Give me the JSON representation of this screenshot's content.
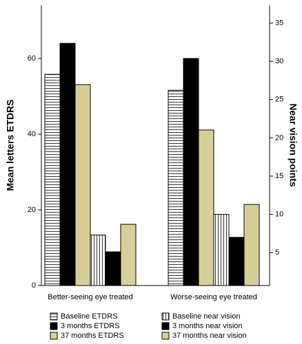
{
  "chart_data": {
    "type": "bar",
    "y_label": "Mean letters ETDRS",
    "y2_label": "Near vision points",
    "categories": [
      "Better-seeing eye treated",
      "Worse-seeing eye treated"
    ],
    "ylim": [
      0,
      74
    ],
    "yticks": [
      0,
      20,
      40,
      60
    ],
    "y2lim": [
      0.7,
      37.3
    ],
    "y2ticks": [
      5,
      10,
      15,
      20,
      25,
      30,
      35
    ],
    "series": [
      {
        "name": "Baseline ETDRS",
        "color": "#ffffff",
        "pattern": "horizontal",
        "axis": "y",
        "values": [
          55.8,
          51.6
        ]
      },
      {
        "name": "3 months ETDRS",
        "color": "#000000",
        "pattern": "none",
        "axis": "y",
        "values": [
          64,
          60
        ]
      },
      {
        "name": "37 months ETDRS",
        "color": "#d6cf98",
        "pattern": "none",
        "axis": "y",
        "values": [
          53.1,
          41.1
        ]
      },
      {
        "name": "Baseline near vision",
        "color": "#ffffff",
        "pattern": "vertical",
        "axis": "y2",
        "values": [
          7.3,
          10.0
        ]
      },
      {
        "name": "3 months near vision",
        "color": "#000000",
        "pattern": "none",
        "axis": "y2",
        "values": [
          5.1,
          7.0
        ]
      },
      {
        "name": "37 months near vision",
        "color": "#d6cf98",
        "pattern": "none",
        "axis": "y2",
        "values": [
          8.7,
          11.3
        ]
      }
    ]
  }
}
